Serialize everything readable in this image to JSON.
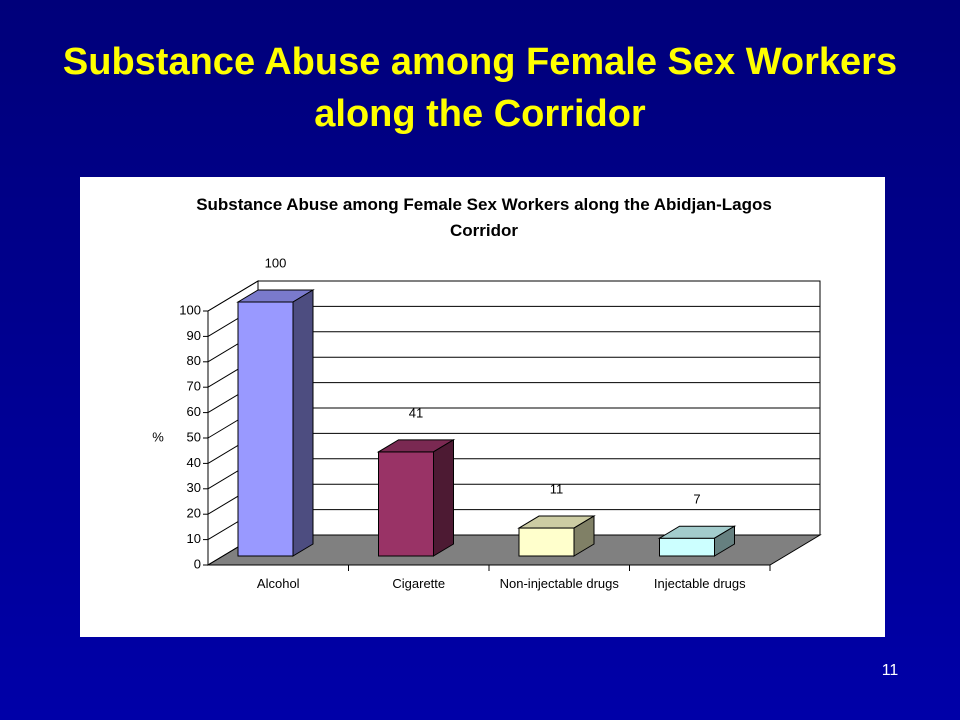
{
  "slide_title": "Substance Abuse among Female Sex Workers along the Corridor",
  "slide_number": "11",
  "chart_data": {
    "type": "bar",
    "title": "Substance Abuse among Female Sex Workers along the Abidjan-Lagos Corridor",
    "y_label": "%",
    "categories": [
      "Alcohol",
      "Cigarette",
      "Non-injectable drugs",
      "Injectable drugs"
    ],
    "values": [
      100,
      41,
      11,
      7
    ],
    "colors": [
      "#9999ff",
      "#993366",
      "#ffffcc",
      "#ccffff"
    ],
    "ylim": [
      0,
      100
    ],
    "yticks": [
      0,
      10,
      20,
      30,
      40,
      50,
      60,
      70,
      80,
      90,
      100
    ],
    "grid": true
  }
}
